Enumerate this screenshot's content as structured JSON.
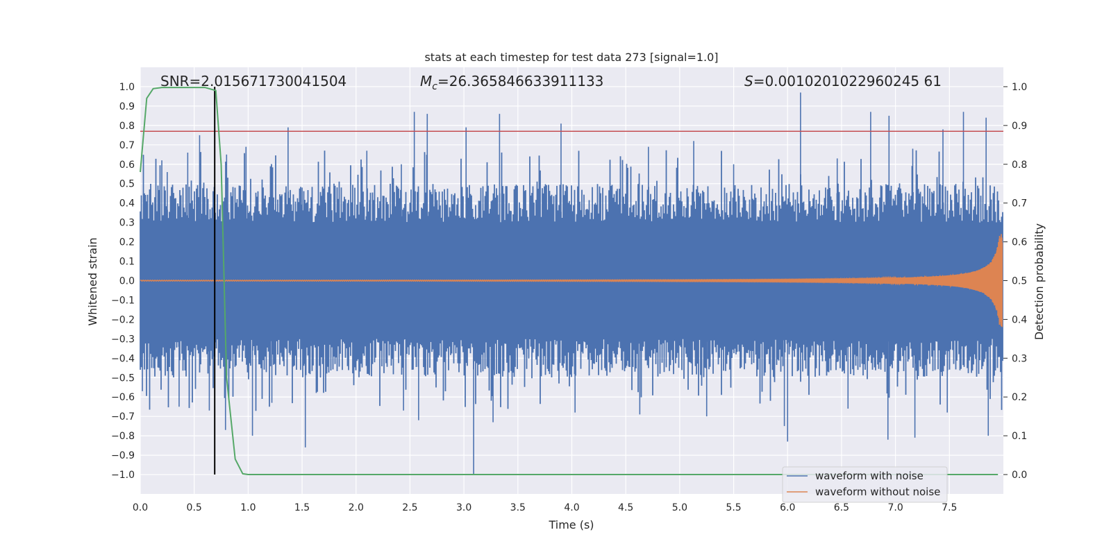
{
  "chart_data": {
    "type": "line",
    "title": "stats at each timestep for test data 273 [signal=1.0]",
    "xlabel": "Time (s)",
    "ylabel": "Whitened strain",
    "ylabel_right": "Detection probability",
    "xlim": [
      0.0,
      8.0
    ],
    "ylim": [
      -1.1,
      1.1
    ],
    "ylim_right": [
      -0.05,
      1.05
    ],
    "xticks": [
      "0.0",
      "0.5",
      "1.0",
      "1.5",
      "2.0",
      "2.5",
      "3.0",
      "3.5",
      "4.0",
      "4.5",
      "5.0",
      "5.5",
      "6.0",
      "6.5",
      "7.0",
      "7.5"
    ],
    "yticks": [
      "1.0",
      "0.9",
      "0.8",
      "0.7",
      "0.6",
      "0.5",
      "0.4",
      "0.3",
      "0.2",
      "0.1",
      "0.0",
      "-0.1",
      "-0.2",
      "-0.3",
      "-0.4",
      "-0.5",
      "-0.6",
      "-0.7",
      "-0.8",
      "-0.9",
      "-1.0"
    ],
    "yticks_right": [
      "1.0",
      "0.9",
      "0.8",
      "0.7",
      "0.6",
      "0.5",
      "0.4",
      "0.3",
      "0.2",
      "0.1",
      "0.0"
    ],
    "grid": true,
    "legend_placement": "lower right",
    "annotations": {
      "snr": "SNR=2.015671730041504",
      "mc_symbol": "M",
      "mc_sub": "c",
      "mc_value": "=26.365846633911133",
      "s_symbol": "S",
      "s_value": "=0.0010201022960245 61"
    },
    "series": [
      {
        "name": "waveform with noise",
        "color": "#4c72b0",
        "summary": {
          "typical_min": -0.4,
          "typical_max": 0.4,
          "peak_max": 0.97,
          "peak_min": -1.0
        },
        "spikes_up": [
          [
            0.2,
            0.62
          ],
          [
            0.25,
            0.56
          ],
          [
            0.44,
            0.66
          ],
          [
            0.55,
            0.75
          ],
          [
            0.8,
            0.65
          ],
          [
            0.98,
            0.69
          ],
          [
            1.37,
            0.79
          ],
          [
            1.5,
            0.48
          ],
          [
            2.1,
            0.67
          ],
          [
            2.42,
            0.6
          ],
          [
            2.54,
            0.87
          ],
          [
            2.66,
            0.86
          ],
          [
            3.02,
            0.79
          ],
          [
            3.33,
            0.86
          ],
          [
            3.9,
            0.81
          ],
          [
            4.71,
            0.69
          ],
          [
            5.13,
            0.72
          ],
          [
            5.5,
            0.6
          ],
          [
            6.12,
            0.97
          ],
          [
            6.46,
            0.63
          ],
          [
            6.77,
            0.87
          ],
          [
            6.94,
            0.85
          ],
          [
            7.16,
            0.68
          ],
          [
            7.44,
            0.78
          ],
          [
            7.63,
            0.87
          ],
          [
            7.84,
            0.84
          ]
        ],
        "spikes_down": [
          [
            0.02,
            -0.57
          ],
          [
            0.36,
            -0.65
          ],
          [
            0.64,
            -0.67
          ],
          [
            0.79,
            -0.77
          ],
          [
            1.04,
            -0.8
          ],
          [
            1.22,
            -0.63
          ],
          [
            1.53,
            -0.86
          ],
          [
            2.44,
            -0.67
          ],
          [
            2.58,
            -0.72
          ],
          [
            3.09,
            -1.0
          ],
          [
            3.27,
            -0.73
          ],
          [
            4.03,
            -0.68
          ],
          [
            4.63,
            -0.69
          ],
          [
            5.25,
            -0.7
          ],
          [
            5.97,
            -0.75
          ],
          [
            6.0,
            -0.83
          ],
          [
            6.56,
            -0.66
          ],
          [
            6.93,
            -0.82
          ],
          [
            7.18,
            -0.81
          ],
          [
            7.48,
            -0.68
          ],
          [
            7.86,
            -0.8
          ]
        ]
      },
      {
        "name": "waveform without noise",
        "color": "#dd8452",
        "summary": {
          "final_max_amplitude": 0.24
        }
      },
      {
        "name": "",
        "color": "#55a868",
        "axis": "right",
        "x": [
          0.0,
          0.06,
          0.12,
          0.2,
          0.3,
          0.5,
          0.6,
          0.7,
          0.75,
          0.8,
          0.88,
          0.95,
          1.0,
          7.95
        ],
        "y": [
          0.78,
          0.97,
          0.995,
          0.998,
          0.998,
          0.998,
          0.998,
          0.99,
          0.8,
          0.25,
          0.04,
          0.002,
          0.0,
          0.0
        ]
      }
    ],
    "reference_lines": [
      {
        "orientation": "horizontal",
        "axis": "left",
        "value": 0.77,
        "color": "#c44e52"
      },
      {
        "orientation": "vertical",
        "value": 0.69,
        "color": "#000000"
      }
    ]
  }
}
